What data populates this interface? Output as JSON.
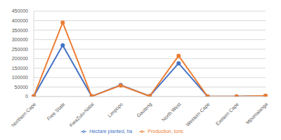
{
  "chart_data": {
    "type": "line",
    "categories": [
      "Northern Cape",
      "Free State",
      "KwaZulu-Natal",
      "Limpopo",
      "Gauteng",
      "North West",
      "Western Cape",
      "Eastern Cape",
      "Mpumalanga"
    ],
    "series": [
      {
        "name": "Hectare planted, ha",
        "color": "#4472c4",
        "marker": "circle",
        "values": [
          1000,
          270000,
          1000,
          60000,
          2000,
          175000,
          500,
          500,
          3000
        ]
      },
      {
        "name": "Production, tons",
        "color": "#ed7d31",
        "marker": "circle",
        "values": [
          1000,
          390000,
          1000,
          58000,
          2000,
          215000,
          500,
          500,
          4000
        ]
      }
    ],
    "ylim": [
      0,
      450000
    ],
    "yticks": [
      0,
      50000,
      100000,
      150000,
      200000,
      250000,
      300000,
      350000,
      400000,
      450000
    ],
    "grid": true,
    "legend": "bottom"
  }
}
